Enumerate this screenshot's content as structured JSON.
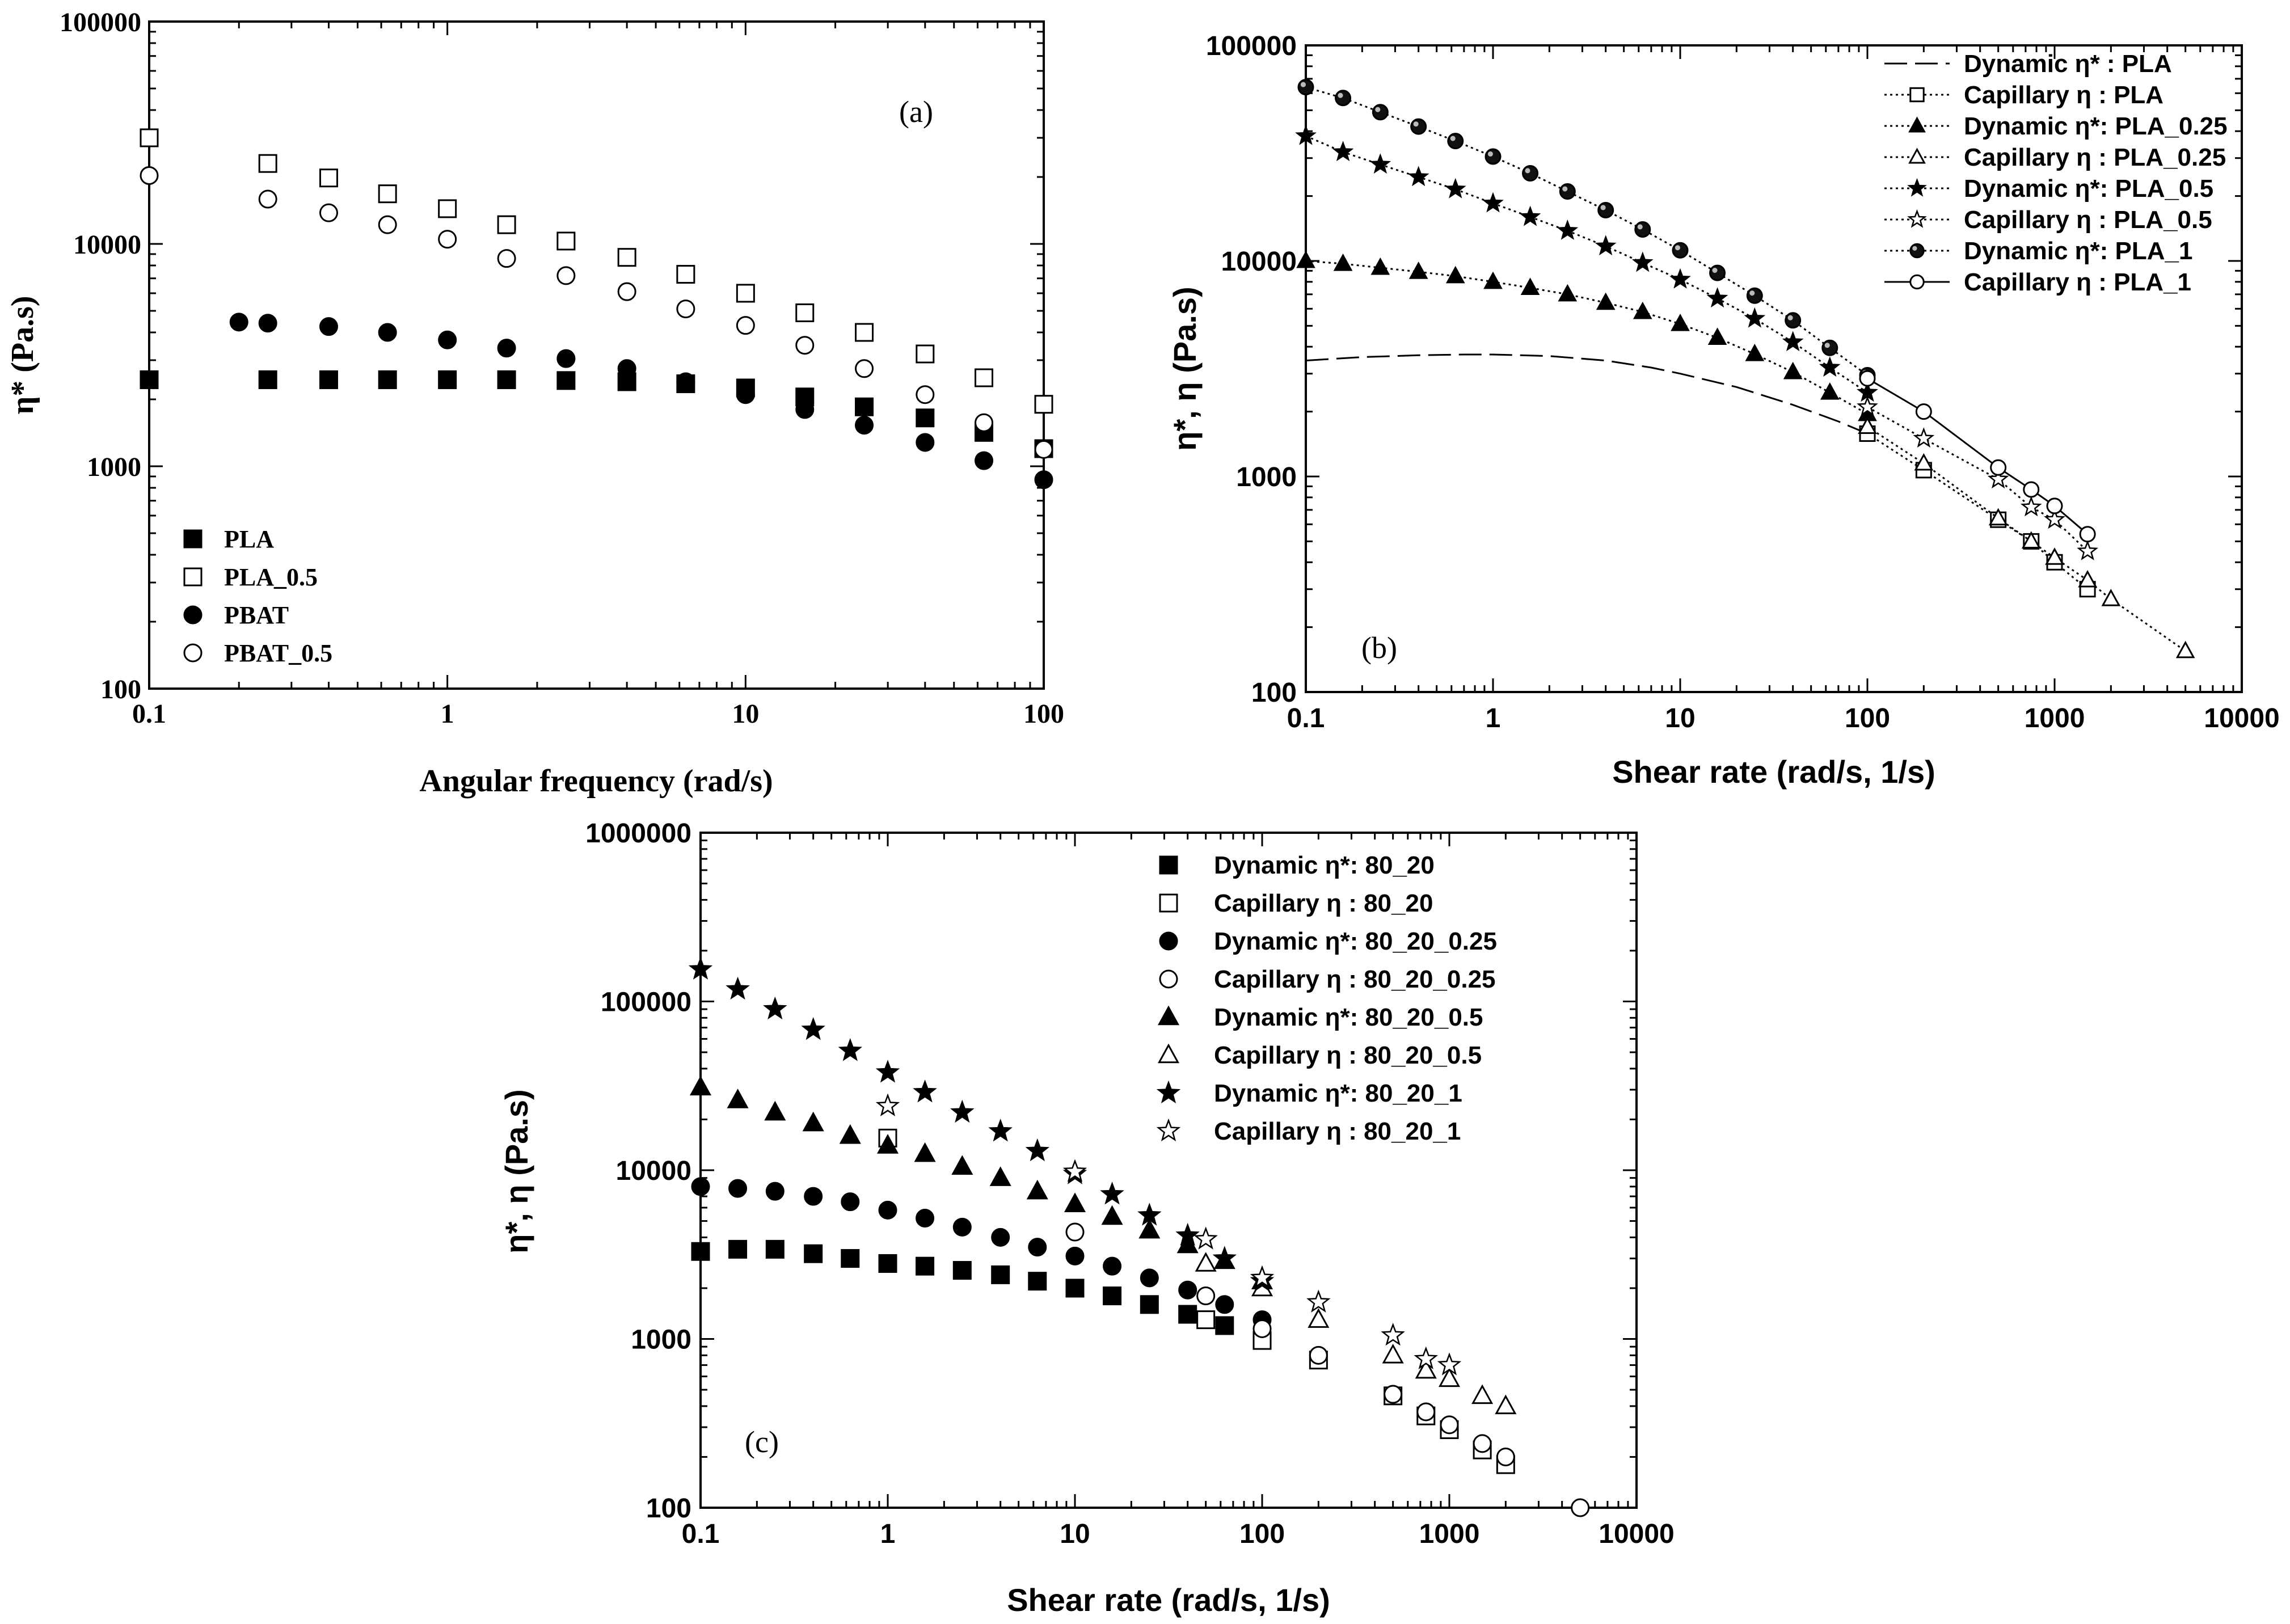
{
  "figure": {
    "background": "#ffffff",
    "ink": "#000000"
  },
  "chart_data": [
    {
      "id": "a",
      "type": "scatter",
      "panel_label": "(a)",
      "title": "",
      "xlabel": "Angular frequency (rad/s)",
      "ylabel": "η* (Pa.s)",
      "xscale": "log",
      "yscale": "log",
      "xlim": [
        0.1,
        100
      ],
      "ylim": [
        100,
        100000
      ],
      "xticks": [
        0.1,
        1,
        10,
        100
      ],
      "xtick_labels": [
        "0.1",
        "1",
        "10",
        "100"
      ],
      "yticks": [
        100,
        1000,
        10000,
        100000
      ],
      "ytick_labels": [
        "100",
        "1000",
        "10000",
        "100000"
      ],
      "legend_position": "bottom-left",
      "series": [
        {
          "name": "PLA",
          "marker": "square",
          "filled": true,
          "x": [
            0.1,
            0.25,
            0.4,
            0.63,
            1,
            1.58,
            2.5,
            4,
            6.3,
            10,
            15.8,
            25,
            40,
            63,
            100
          ],
          "y": [
            2450,
            2450,
            2450,
            2450,
            2450,
            2450,
            2430,
            2400,
            2350,
            2250,
            2050,
            1850,
            1650,
            1420,
            1200
          ]
        },
        {
          "name": "PLA_0.5",
          "marker": "square",
          "filled": false,
          "x": [
            0.1,
            0.25,
            0.4,
            0.63,
            1,
            1.58,
            2.5,
            4,
            6.3,
            10,
            15.8,
            25,
            40,
            63,
            100
          ],
          "y": [
            30000,
            23000,
            19800,
            16800,
            14400,
            12200,
            10300,
            8700,
            7300,
            6000,
            4900,
            4000,
            3200,
            2500,
            1900
          ]
        },
        {
          "name": "PBAT",
          "marker": "circle",
          "filled": true,
          "x": [
            0.2,
            0.25,
            0.4,
            0.63,
            1,
            1.58,
            2.5,
            4,
            6.3,
            10,
            15.8,
            25,
            40,
            63,
            100
          ],
          "y": [
            4450,
            4400,
            4250,
            4000,
            3700,
            3400,
            3050,
            2750,
            2400,
            2100,
            1800,
            1530,
            1280,
            1060,
            870
          ]
        },
        {
          "name": "PBAT_0.5",
          "marker": "circle",
          "filled": false,
          "x": [
            0.1,
            0.25,
            0.4,
            0.63,
            1,
            1.58,
            2.5,
            4,
            6.3,
            10,
            15.8,
            25,
            40,
            63,
            100
          ],
          "y": [
            20300,
            15900,
            13800,
            12200,
            10500,
            8600,
            7200,
            6100,
            5100,
            4300,
            3500,
            2750,
            2100,
            1570,
            1190
          ]
        }
      ]
    },
    {
      "id": "b",
      "type": "line",
      "panel_label": "(b)",
      "title": "",
      "xlabel": "Shear rate (rad/s, 1/s)",
      "ylabel": "η*, η (Pa.s)",
      "xscale": "log",
      "yscale": "log",
      "xlim": [
        0.1,
        10000
      ],
      "ylim": [
        100,
        100000
      ],
      "xticks": [
        0.1,
        1,
        10,
        100,
        1000,
        10000
      ],
      "xtick_labels": [
        "0.1",
        "1",
        "10",
        "100",
        "1000",
        "10000"
      ],
      "yticks": [
        100,
        1000,
        10000,
        100000
      ],
      "ytick_labels": [
        "100",
        "1000",
        "10000",
        "100000"
      ],
      "legend_position": "top-right",
      "series": [
        {
          "name": "Dynamic η* : PLA",
          "marker": "none",
          "filled": false,
          "line": "dashed",
          "x": [
            0.1,
            0.2,
            0.4,
            0.7,
            1,
            2,
            4,
            7,
            10,
            20,
            40,
            70,
            100
          ],
          "y": [
            3450,
            3580,
            3650,
            3680,
            3680,
            3620,
            3450,
            3200,
            3000,
            2600,
            2150,
            1800,
            1580
          ]
        },
        {
          "name": "Capillary η : PLA",
          "marker": "square",
          "filled": false,
          "line": "dotted",
          "x": [
            100,
            200,
            500,
            750,
            1000,
            1500
          ],
          "y": [
            1580,
            1070,
            630,
            500,
            400,
            300
          ]
        },
        {
          "name": "Dynamic η*: PLA_0.25",
          "marker": "triangle",
          "filled": true,
          "line": "dotted",
          "x": [
            0.1,
            0.158,
            0.25,
            0.4,
            0.63,
            1,
            1.58,
            2.5,
            4,
            6.3,
            10,
            15.8,
            25,
            40,
            63,
            100
          ],
          "y": [
            10000,
            9700,
            9300,
            8900,
            8500,
            8000,
            7500,
            7000,
            6400,
            5800,
            5100,
            4400,
            3700,
            3050,
            2450,
            1950
          ]
        },
        {
          "name": "Capillary η : PLA_0.25",
          "marker": "triangle",
          "filled": false,
          "line": "dotted",
          "x": [
            100,
            200,
            500,
            750,
            1000,
            1500,
            2000,
            5000
          ],
          "y": [
            1700,
            1150,
            640,
            500,
            420,
            330,
            270,
            155
          ]
        },
        {
          "name": "Dynamic η*: PLA_0.5",
          "marker": "star",
          "filled": true,
          "line": "dotted",
          "x": [
            0.1,
            0.158,
            0.25,
            0.4,
            0.63,
            1,
            1.58,
            2.5,
            4,
            6.3,
            10,
            15.8,
            25,
            40,
            63,
            100
          ],
          "y": [
            38000,
            32000,
            28000,
            24500,
            21500,
            18500,
            16000,
            13800,
            11700,
            9800,
            8200,
            6700,
            5400,
            4200,
            3200,
            2450
          ]
        },
        {
          "name": "Capillary η : PLA_0.5",
          "marker": "star",
          "filled": false,
          "line": "dotted",
          "x": [
            100,
            200,
            500,
            750,
            1000,
            1500
          ],
          "y": [
            2100,
            1500,
            970,
            720,
            630,
            450
          ]
        },
        {
          "name": "Dynamic η*: PLA_1",
          "marker": "sphere",
          "filled": true,
          "line": "dotted",
          "x": [
            0.1,
            0.158,
            0.25,
            0.4,
            0.63,
            1,
            1.58,
            2.5,
            4,
            6.3,
            10,
            15.8,
            25,
            40,
            63,
            100
          ],
          "y": [
            64000,
            57000,
            49000,
            42000,
            36000,
            30500,
            25500,
            21000,
            17200,
            14000,
            11200,
            8800,
            6900,
            5300,
            3950,
            2950
          ]
        },
        {
          "name": "Capillary η : PLA_1",
          "marker": "circle",
          "filled": false,
          "line": "solid",
          "x": [
            100,
            200,
            500,
            750,
            1000,
            1500
          ],
          "y": [
            2850,
            2000,
            1100,
            870,
            730,
            540
          ]
        }
      ]
    },
    {
      "id": "c",
      "type": "scatter",
      "panel_label": "(c)",
      "title": "",
      "xlabel": "Shear rate (rad/s, 1/s)",
      "ylabel": "η*, η (Pa.s)",
      "xscale": "log",
      "yscale": "log",
      "xlim": [
        0.1,
        10000
      ],
      "ylim": [
        100,
        1000000
      ],
      "xticks": [
        0.1,
        1,
        10,
        100,
        1000,
        10000
      ],
      "xtick_labels": [
        "0.1",
        "1",
        "10",
        "100",
        "1000",
        "10000"
      ],
      "yticks": [
        100,
        1000,
        10000,
        100000,
        1000000
      ],
      "ytick_labels": [
        "100",
        "1000",
        "10000",
        "100000",
        "1000000"
      ],
      "legend_position": "top-right",
      "series": [
        {
          "name": "Dynamic η*: 80_20",
          "marker": "square",
          "filled": true,
          "x": [
            0.1,
            0.158,
            0.25,
            0.4,
            0.63,
            1,
            1.58,
            2.5,
            4,
            6.3,
            10,
            15.8,
            25,
            40,
            63
          ],
          "y": [
            3300,
            3400,
            3400,
            3200,
            3000,
            2800,
            2700,
            2550,
            2400,
            2200,
            2000,
            1800,
            1600,
            1400,
            1200
          ]
        },
        {
          "name": "Capillary η : 80_20",
          "marker": "square",
          "filled": false,
          "x": [
            1,
            50,
            100,
            200,
            500,
            750,
            1000,
            1500,
            2000
          ],
          "y": [
            15500,
            1300,
            980,
            750,
            460,
            350,
            290,
            220,
            180
          ]
        },
        {
          "name": "Dynamic η*: 80_20_0.25",
          "marker": "circle",
          "filled": true,
          "x": [
            0.1,
            0.158,
            0.25,
            0.4,
            0.63,
            1,
            1.58,
            2.5,
            4,
            6.3,
            10,
            15.8,
            25,
            40,
            63,
            100
          ],
          "y": [
            8000,
            7800,
            7500,
            7000,
            6500,
            5800,
            5200,
            4600,
            4000,
            3500,
            3100,
            2700,
            2300,
            1950,
            1600,
            1300
          ]
        },
        {
          "name": "Capillary η : 80_20_0.25",
          "marker": "circle",
          "filled": false,
          "x": [
            10,
            50,
            100,
            200,
            500,
            750,
            1000,
            1500,
            2000,
            5000
          ],
          "y": [
            4300,
            1800,
            1150,
            800,
            470,
            370,
            310,
            240,
            200,
            100
          ]
        },
        {
          "name": "Dynamic η*: 80_20_0.5",
          "marker": "triangle",
          "filled": true,
          "x": [
            0.1,
            0.158,
            0.25,
            0.4,
            0.63,
            1,
            1.58,
            2.5,
            4,
            6.3,
            10,
            15.8,
            25,
            40,
            63,
            100
          ],
          "y": [
            31000,
            26000,
            22000,
            19000,
            16000,
            14000,
            12500,
            10500,
            9000,
            7500,
            6300,
            5300,
            4400,
            3600,
            2900,
            2200
          ]
        },
        {
          "name": "Capillary η : 80_20_0.5",
          "marker": "triangle",
          "filled": false,
          "x": [
            50,
            100,
            200,
            500,
            750,
            1000,
            1500,
            2000
          ],
          "y": [
            2800,
            2000,
            1300,
            800,
            650,
            580,
            460,
            400
          ]
        },
        {
          "name": "Dynamic η*: 80_20_1",
          "marker": "star",
          "filled": true,
          "x": [
            0.1,
            0.158,
            0.25,
            0.4,
            0.63,
            1,
            1.58,
            2.5,
            4,
            6.3,
            10,
            15.8,
            25,
            40,
            63,
            100
          ],
          "y": [
            155000,
            118000,
            90000,
            68000,
            51000,
            38000,
            29000,
            22000,
            17000,
            13000,
            9500,
            7200,
            5400,
            4100,
            3000,
            2200
          ]
        },
        {
          "name": "Capillary η : 80_20_1",
          "marker": "star",
          "filled": false,
          "x": [
            1,
            10,
            50,
            100,
            200,
            500,
            750,
            1000
          ],
          "y": [
            24000,
            9800,
            3900,
            2300,
            1650,
            1050,
            760,
            700
          ]
        }
      ]
    }
  ]
}
